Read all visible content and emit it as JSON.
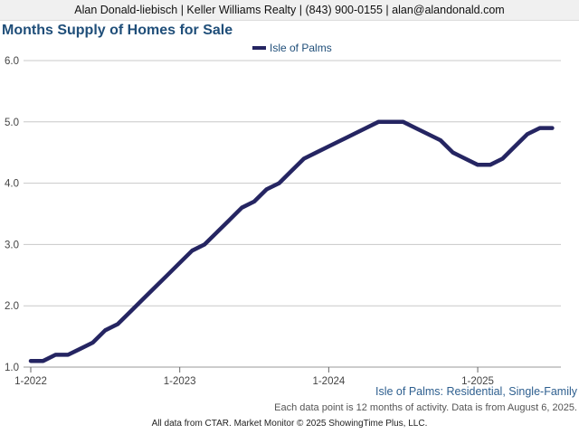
{
  "banner": {
    "text": "Alan Donald-liebisch | Keller Williams Realty | (843) 900-0155 | alan@alandonald.com"
  },
  "colors": {
    "series": "#252562",
    "title": "#1f4e79",
    "grid": "#c8c8c8"
  },
  "chart_data": {
    "type": "line",
    "title": "Months Supply of Homes for Sale",
    "subtitle": "Isle of Palms: Residential, Single-Family",
    "note": "Each data point is 12 months of activity. Data is from August 6, 2025.",
    "legend_position": "top",
    "grid": true,
    "ylim": [
      1.0,
      6.0
    ],
    "yticks": [
      "1.0",
      "2.0",
      "3.0",
      "4.0",
      "5.0",
      "6.0"
    ],
    "xticks": [
      "1-2022",
      "1-2023",
      "1-2024",
      "1-2025"
    ],
    "x": [
      "2022-01",
      "2022-02",
      "2022-03",
      "2022-04",
      "2022-05",
      "2022-06",
      "2022-07",
      "2022-08",
      "2022-09",
      "2022-10",
      "2022-11",
      "2022-12",
      "2023-01",
      "2023-02",
      "2023-03",
      "2023-04",
      "2023-05",
      "2023-06",
      "2023-07",
      "2023-08",
      "2023-09",
      "2023-10",
      "2023-11",
      "2023-12",
      "2024-01",
      "2024-02",
      "2024-03",
      "2024-04",
      "2024-05",
      "2024-06",
      "2024-07",
      "2024-08",
      "2024-09",
      "2024-10",
      "2024-11",
      "2024-12",
      "2025-01",
      "2025-02",
      "2025-03",
      "2025-04",
      "2025-05",
      "2025-06",
      "2025-07"
    ],
    "series": [
      {
        "name": "Isle of Palms",
        "values": [
          1.1,
          1.1,
          1.2,
          1.2,
          1.3,
          1.4,
          1.6,
          1.7,
          1.9,
          2.1,
          2.3,
          2.5,
          2.7,
          2.9,
          3.0,
          3.2,
          3.4,
          3.6,
          3.7,
          3.9,
          4.0,
          4.2,
          4.4,
          4.5,
          4.6,
          4.7,
          4.8,
          4.9,
          5.0,
          5.0,
          5.0,
          4.9,
          4.8,
          4.7,
          4.5,
          4.4,
          4.3,
          4.3,
          4.4,
          4.6,
          4.8,
          4.9,
          4.9
        ]
      }
    ]
  },
  "footer": {
    "text": "All data from CTAR. Market Monitor © 2025 ShowingTime Plus, LLC."
  }
}
